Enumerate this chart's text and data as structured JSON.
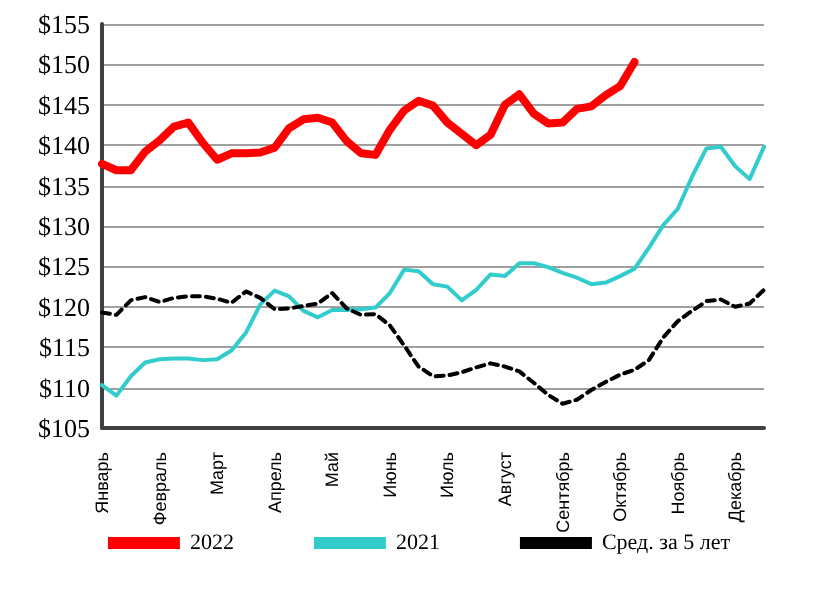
{
  "chart_data": {
    "type": "line",
    "categories": [
      "Январь",
      null,
      null,
      null,
      "Февраль",
      null,
      null,
      null,
      "Март",
      null,
      null,
      null,
      "Апрель",
      null,
      null,
      null,
      "Май",
      null,
      null,
      null,
      "Июнь",
      null,
      null,
      null,
      "Июль",
      null,
      null,
      null,
      "Август",
      null,
      null,
      null,
      "Сентябрь",
      null,
      null,
      null,
      "Октябрь",
      null,
      null,
      null,
      "Ноябрь",
      null,
      null,
      null,
      "Декабрь",
      null,
      null
    ],
    "ylim": [
      105,
      155
    ],
    "yticks": [
      {
        "value": 105,
        "label": "$105"
      },
      {
        "value": 110,
        "label": "$110"
      },
      {
        "value": 115,
        "label": "$115"
      },
      {
        "value": 120,
        "label": "$120"
      },
      {
        "value": 125,
        "label": "$125"
      },
      {
        "value": 130,
        "label": "$130"
      },
      {
        "value": 135,
        "label": "$135"
      },
      {
        "value": 140,
        "label": "$140"
      },
      {
        "value": 145,
        "label": "$145"
      },
      {
        "value": 150,
        "label": "$150"
      },
      {
        "value": 155,
        "label": "$155"
      }
    ],
    "grid": "y",
    "legend": "bottom",
    "marker": "none",
    "series": [
      {
        "name": "2022",
        "color": "#ff0000",
        "line_style": "solid",
        "values": [
          137.7,
          136.9,
          136.9,
          139.2,
          140.6,
          142.3,
          142.8,
          140.3,
          138.2,
          139.0,
          139.0,
          139.1,
          139.7,
          142.1,
          143.2,
          143.4,
          142.8,
          140.5,
          139.0,
          138.8,
          141.9,
          144.3,
          145.5,
          144.9,
          142.8,
          141.4,
          140.0,
          141.3,
          145.0,
          146.3,
          143.9,
          142.7,
          142.8,
          144.5,
          144.8,
          146.2,
          147.3,
          150.3,
          null,
          null,
          null,
          null,
          null,
          null,
          null,
          null,
          null
        ]
      },
      {
        "name": "2021",
        "color": "#33cccc",
        "line_style": "solid",
        "values": [
          110.3,
          109.0,
          111.4,
          113.1,
          113.5,
          113.6,
          113.6,
          113.4,
          113.5,
          114.6,
          116.8,
          120.3,
          122.0,
          121.3,
          119.5,
          118.7,
          119.6,
          119.6,
          119.7,
          119.9,
          121.7,
          124.6,
          124.4,
          122.8,
          122.5,
          120.8,
          122.1,
          124.0,
          123.8,
          125.4,
          125.4,
          124.9,
          124.2,
          123.6,
          122.8,
          123.0,
          123.8,
          124.7,
          127.3,
          130.1,
          132.1,
          136.1,
          139.6,
          139.8,
          137.4,
          135.8,
          139.8
        ]
      },
      {
        "name": "Сред. за 5 лет",
        "color": "#000000",
        "line_style": "dashed",
        "values": [
          119.3,
          119.0,
          120.8,
          121.2,
          120.6,
          121.1,
          121.3,
          121.3,
          121.0,
          120.5,
          121.9,
          121.1,
          119.7,
          119.8,
          120.1,
          120.4,
          121.7,
          119.8,
          119.0,
          119.1,
          117.7,
          115.2,
          112.6,
          111.4,
          111.5,
          111.9,
          112.5,
          113.0,
          112.6,
          112.0,
          110.6,
          109.1,
          108.0,
          108.5,
          109.7,
          110.7,
          111.6,
          112.2,
          113.4,
          116.2,
          118.2,
          119.5,
          120.7,
          120.9,
          120.0,
          120.4,
          122.1
        ]
      }
    ]
  }
}
